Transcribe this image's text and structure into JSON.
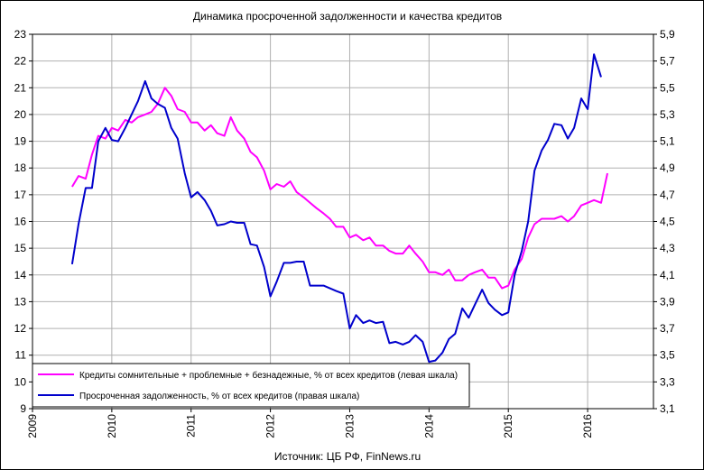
{
  "chart_data": {
    "type": "line",
    "title": "Динамика  просроченной  задолженности  и качества  кредитов",
    "source": "Источник:  ЦБ РФ, FinNews.ru",
    "x_axis": {
      "ticks": [
        "2009",
        "2010",
        "2011",
        "2012",
        "2013",
        "2014",
        "2015",
        "2016"
      ],
      "range": [
        2009,
        2016.83
      ]
    },
    "y_left": {
      "range": [
        9,
        23
      ],
      "ticks": [
        "9",
        "10",
        "11",
        "12",
        "13",
        "14",
        "15",
        "16",
        "17",
        "18",
        "19",
        "20",
        "21",
        "22",
        "23"
      ]
    },
    "y_right": {
      "range": [
        3.1,
        5.9
      ],
      "ticks": [
        "3,1",
        "3,3",
        "3,5",
        "3,7",
        "3,9",
        "4,1",
        "4,3",
        "4,5",
        "4,7",
        "4,9",
        "5,1",
        "5,3",
        "5,5",
        "5,7",
        "5,9"
      ]
    },
    "grid": true,
    "legend_position": "bottom-left",
    "series": [
      {
        "name": "Кредиты сомнительные + проблемные + безнадежные,  % от всех кредитов (левая шкала)",
        "axis": "left",
        "color": "#ff00ff",
        "points": [
          [
            2009.5,
            17.3
          ],
          [
            2009.58,
            17.7
          ],
          [
            2009.67,
            17.6
          ],
          [
            2009.75,
            18.5
          ],
          [
            2009.83,
            19.2
          ],
          [
            2009.92,
            19.1
          ],
          [
            2010.0,
            19.5
          ],
          [
            2010.08,
            19.4
          ],
          [
            2010.17,
            19.8
          ],
          [
            2010.25,
            19.7
          ],
          [
            2010.33,
            19.9
          ],
          [
            2010.42,
            20.0
          ],
          [
            2010.5,
            20.1
          ],
          [
            2010.58,
            20.4
          ],
          [
            2010.67,
            21.0
          ],
          [
            2010.75,
            20.7
          ],
          [
            2010.83,
            20.2
          ],
          [
            2010.92,
            20.1
          ],
          [
            2011.0,
            19.7
          ],
          [
            2011.08,
            19.7
          ],
          [
            2011.17,
            19.4
          ],
          [
            2011.25,
            19.6
          ],
          [
            2011.33,
            19.3
          ],
          [
            2011.42,
            19.2
          ],
          [
            2011.5,
            19.9
          ],
          [
            2011.58,
            19.4
          ],
          [
            2011.67,
            19.1
          ],
          [
            2011.75,
            18.6
          ],
          [
            2011.83,
            18.4
          ],
          [
            2011.92,
            17.9
          ],
          [
            2012.0,
            17.2
          ],
          [
            2012.08,
            17.4
          ],
          [
            2012.17,
            17.3
          ],
          [
            2012.25,
            17.5
          ],
          [
            2012.33,
            17.1
          ],
          [
            2012.42,
            16.9
          ],
          [
            2012.5,
            16.7
          ],
          [
            2012.58,
            16.5
          ],
          [
            2012.67,
            16.3
          ],
          [
            2012.75,
            16.1
          ],
          [
            2012.83,
            15.8
          ],
          [
            2012.92,
            15.8
          ],
          [
            2013.0,
            15.4
          ],
          [
            2013.08,
            15.5
          ],
          [
            2013.17,
            15.3
          ],
          [
            2013.25,
            15.4
          ],
          [
            2013.33,
            15.1
          ],
          [
            2013.42,
            15.1
          ],
          [
            2013.5,
            14.9
          ],
          [
            2013.58,
            14.8
          ],
          [
            2013.67,
            14.8
          ],
          [
            2013.75,
            15.1
          ],
          [
            2013.83,
            14.8
          ],
          [
            2013.92,
            14.5
          ],
          [
            2014.0,
            14.1
          ],
          [
            2014.08,
            14.1
          ],
          [
            2014.17,
            14.0
          ],
          [
            2014.25,
            14.2
          ],
          [
            2014.33,
            13.8
          ],
          [
            2014.42,
            13.8
          ],
          [
            2014.5,
            14.0
          ],
          [
            2014.58,
            14.1
          ],
          [
            2014.67,
            14.2
          ],
          [
            2014.75,
            13.9
          ],
          [
            2014.83,
            13.9
          ],
          [
            2014.92,
            13.5
          ],
          [
            2015.0,
            13.6
          ],
          [
            2015.08,
            14.2
          ],
          [
            2015.17,
            14.6
          ],
          [
            2015.25,
            15.4
          ],
          [
            2015.33,
            15.9
          ],
          [
            2015.42,
            16.1
          ],
          [
            2015.5,
            16.1
          ],
          [
            2015.58,
            16.1
          ],
          [
            2015.67,
            16.2
          ],
          [
            2015.75,
            16.0
          ],
          [
            2015.83,
            16.2
          ],
          [
            2015.92,
            16.6
          ],
          [
            2016.0,
            16.7
          ],
          [
            2016.08,
            16.8
          ],
          [
            2016.17,
            16.7
          ],
          [
            2016.25,
            17.8
          ]
        ]
      },
      {
        "name": "Просроченная задолженность, % от всех кредитов (правая шкала)",
        "axis": "right",
        "color": "#0000cc",
        "points": [
          [
            2009.5,
            4.18
          ],
          [
            2009.58,
            4.48
          ],
          [
            2009.67,
            4.75
          ],
          [
            2009.75,
            4.75
          ],
          [
            2009.83,
            5.1
          ],
          [
            2009.92,
            5.2
          ],
          [
            2010.0,
            5.11
          ],
          [
            2010.08,
            5.1
          ],
          [
            2010.17,
            5.2
          ],
          [
            2010.25,
            5.3
          ],
          [
            2010.33,
            5.4
          ],
          [
            2010.42,
            5.55
          ],
          [
            2010.5,
            5.42
          ],
          [
            2010.58,
            5.38
          ],
          [
            2010.67,
            5.35
          ],
          [
            2010.75,
            5.2
          ],
          [
            2010.83,
            5.12
          ],
          [
            2010.92,
            4.86
          ],
          [
            2011.0,
            4.68
          ],
          [
            2011.08,
            4.72
          ],
          [
            2011.17,
            4.66
          ],
          [
            2011.25,
            4.58
          ],
          [
            2011.33,
            4.47
          ],
          [
            2011.42,
            4.48
          ],
          [
            2011.5,
            4.5
          ],
          [
            2011.58,
            4.49
          ],
          [
            2011.67,
            4.49
          ],
          [
            2011.75,
            4.33
          ],
          [
            2011.83,
            4.32
          ],
          [
            2011.92,
            4.16
          ],
          [
            2012.0,
            3.94
          ],
          [
            2012.08,
            4.05
          ],
          [
            2012.17,
            4.19
          ],
          [
            2012.25,
            4.19
          ],
          [
            2012.33,
            4.2
          ],
          [
            2012.42,
            4.2
          ],
          [
            2012.5,
            4.02
          ],
          [
            2012.58,
            4.02
          ],
          [
            2012.67,
            4.02
          ],
          [
            2012.75,
            4.0
          ],
          [
            2012.83,
            3.98
          ],
          [
            2012.92,
            3.96
          ],
          [
            2013.0,
            3.7
          ],
          [
            2013.08,
            3.8
          ],
          [
            2013.17,
            3.74
          ],
          [
            2013.25,
            3.76
          ],
          [
            2013.33,
            3.74
          ],
          [
            2013.42,
            3.75
          ],
          [
            2013.5,
            3.59
          ],
          [
            2013.58,
            3.6
          ],
          [
            2013.67,
            3.58
          ],
          [
            2013.75,
            3.6
          ],
          [
            2013.83,
            3.65
          ],
          [
            2013.92,
            3.6
          ],
          [
            2014.0,
            3.45
          ],
          [
            2014.08,
            3.46
          ],
          [
            2014.17,
            3.52
          ],
          [
            2014.25,
            3.62
          ],
          [
            2014.33,
            3.66
          ],
          [
            2014.42,
            3.85
          ],
          [
            2014.5,
            3.78
          ],
          [
            2014.58,
            3.88
          ],
          [
            2014.67,
            3.99
          ],
          [
            2014.75,
            3.89
          ],
          [
            2014.83,
            3.84
          ],
          [
            2014.92,
            3.8
          ],
          [
            2015.0,
            3.82
          ],
          [
            2015.08,
            4.1
          ],
          [
            2015.17,
            4.28
          ],
          [
            2015.25,
            4.5
          ],
          [
            2015.33,
            4.88
          ],
          [
            2015.42,
            5.03
          ],
          [
            2015.5,
            5.11
          ],
          [
            2015.58,
            5.23
          ],
          [
            2015.67,
            5.22
          ],
          [
            2015.75,
            5.12
          ],
          [
            2015.83,
            5.2
          ],
          [
            2015.92,
            5.42
          ],
          [
            2016.0,
            5.34
          ],
          [
            2016.08,
            5.75
          ],
          [
            2016.17,
            5.58
          ]
        ]
      }
    ]
  }
}
